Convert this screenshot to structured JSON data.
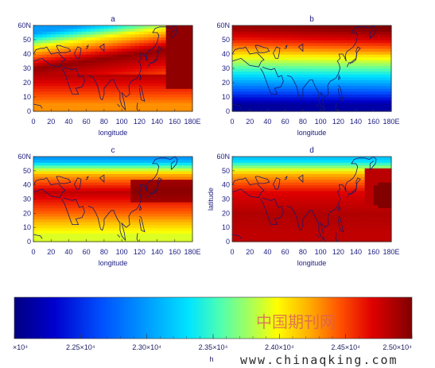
{
  "chart_data": [
    {
      "panel": "a",
      "type": "heatmap",
      "title": "a",
      "xlabel": "longitude",
      "ylabel": "",
      "x_tick_labels": [
        "0",
        "20",
        "40",
        "60",
        "80",
        "100",
        "120",
        "140",
        "160",
        "180E"
      ],
      "y_tick_labels": [
        "0",
        "10",
        "20",
        "30",
        "40",
        "50",
        "60N"
      ],
      "xlim": [
        0,
        180
      ],
      "ylim": [
        0,
        60
      ],
      "z_units": "h (x10^4)",
      "field_samples": [
        {
          "lat": 5,
          "value": 2.43
        },
        {
          "lat": 20,
          "value": 2.47
        },
        {
          "lat": 30,
          "value": 2.495
        },
        {
          "lat": 45,
          "value": 2.4
        },
        {
          "lat": 55,
          "value": 2.3
        }
      ]
    },
    {
      "panel": "b",
      "type": "heatmap",
      "title": "b",
      "xlabel": "longitude",
      "ylabel": "",
      "x_tick_labels": [
        "0",
        "20",
        "40",
        "60",
        "80",
        "100",
        "120",
        "140",
        "160",
        "180E"
      ],
      "y_tick_labels": [
        "0",
        "10",
        "20",
        "30",
        "40",
        "50",
        "60N"
      ],
      "xlim": [
        0,
        180
      ],
      "ylim": [
        0,
        60
      ],
      "z_units": "h (x10^4)",
      "field_samples": [
        {
          "lat": 5,
          "value": 2.21
        },
        {
          "lat": 20,
          "value": 2.3
        },
        {
          "lat": 35,
          "value": 2.38
        },
        {
          "lat": 50,
          "value": 2.46
        },
        {
          "lat": 58,
          "value": 2.49
        }
      ]
    },
    {
      "panel": "c",
      "type": "heatmap",
      "title": "c",
      "xlabel": "longitude",
      "ylabel": "",
      "x_tick_labels": [
        "0",
        "20",
        "40",
        "60",
        "80",
        "100",
        "120",
        "140",
        "160",
        "180E"
      ],
      "y_tick_labels": [
        "0",
        "10",
        "20",
        "30",
        "40",
        "50",
        "60N"
      ],
      "xlim": [
        0,
        180
      ],
      "ylim": [
        0,
        60
      ],
      "z_units": "h (x10^4)",
      "field_samples": [
        {
          "lat": 5,
          "value": 2.39
        },
        {
          "lat": 20,
          "value": 2.44
        },
        {
          "lat": 35,
          "value": 2.48
        },
        {
          "lat": 48,
          "value": 2.42
        },
        {
          "lat": 58,
          "value": 2.3
        }
      ]
    },
    {
      "panel": "d",
      "type": "heatmap",
      "title": "d",
      "xlabel": "longitude",
      "ylabel": "latitude",
      "x_tick_labels": [
        "0",
        "20",
        "40",
        "60",
        "80",
        "100",
        "120",
        "140",
        "160",
        "180E"
      ],
      "y_tick_labels": [
        "0",
        "10",
        "20",
        "30",
        "40",
        "50",
        "60N"
      ],
      "xlim": [
        0,
        180
      ],
      "ylim": [
        0,
        60
      ],
      "z_units": "h (x10^4)",
      "field_samples": [
        {
          "lat": 5,
          "value": 2.48
        },
        {
          "lat": 20,
          "value": 2.485
        },
        {
          "lat": 35,
          "value": 2.47
        },
        {
          "lat": 48,
          "value": 2.42
        },
        {
          "lat": 58,
          "value": 2.32
        }
      ]
    }
  ],
  "colorbar": {
    "label": "h",
    "range": [
      2.2,
      2.5
    ],
    "tick_labels": [
      "×10⁴",
      "2.25×10⁴",
      "2.30×10⁴",
      "2.35×10⁴",
      "2.40×10⁴",
      "2.45×10⁴",
      "2.50×10⁴"
    ],
    "tick_values": [
      2.2,
      2.25,
      2.3,
      2.35,
      2.4,
      2.45,
      2.5
    ],
    "colors": [
      "#000080",
      "#0000cd",
      "#0050ff",
      "#00a0ff",
      "#00e5ff",
      "#50ffb0",
      "#b0ff50",
      "#ffff00",
      "#ffb000",
      "#ff5000",
      "#e00000",
      "#800000"
    ]
  },
  "watermark": {
    "chinese": "中国期刊网",
    "url": "www.chinaqking.com"
  }
}
